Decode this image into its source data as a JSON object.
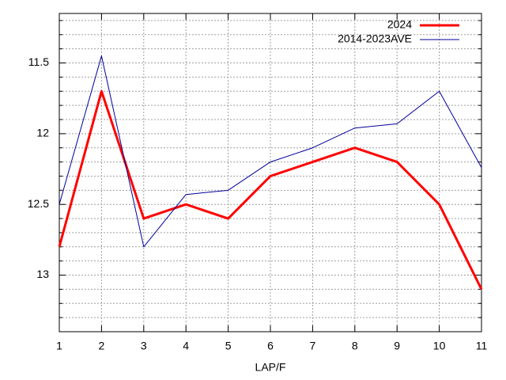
{
  "chart_data": {
    "type": "line",
    "x_label": "LAP/F",
    "x": [
      1,
      2,
      3,
      4,
      5,
      6,
      7,
      8,
      9,
      10,
      11
    ],
    "series": [
      {
        "name": "2024",
        "color": "#ff0000",
        "line_width": 3,
        "values": [
          12.8,
          11.7,
          12.6,
          12.5,
          12.6,
          12.3,
          12.2,
          12.1,
          12.2,
          12.5,
          13.1
        ]
      },
      {
        "name": "2014-2023AVE",
        "color": "#000099",
        "line_width": 1,
        "values": [
          12.5,
          11.45,
          12.8,
          12.43,
          12.4,
          12.2,
          12.1,
          11.96,
          11.93,
          11.7,
          12.24
        ]
      }
    ],
    "xlim": [
      1,
      11
    ],
    "xticks": [
      1,
      2,
      3,
      4,
      5,
      6,
      7,
      8,
      9,
      10,
      11
    ],
    "ylim": [
      13.4,
      11.15
    ],
    "yticks": [
      11.5,
      12,
      12.5,
      13
    ],
    "minor_yticks": [
      11.2,
      11.3,
      11.4,
      11.6,
      11.7,
      11.8,
      11.9,
      12.1,
      12.2,
      12.3,
      12.4,
      12.6,
      12.7,
      12.8,
      12.9,
      13.1,
      13.2,
      13.3
    ],
    "grid": true,
    "legend_position": "top-right"
  }
}
